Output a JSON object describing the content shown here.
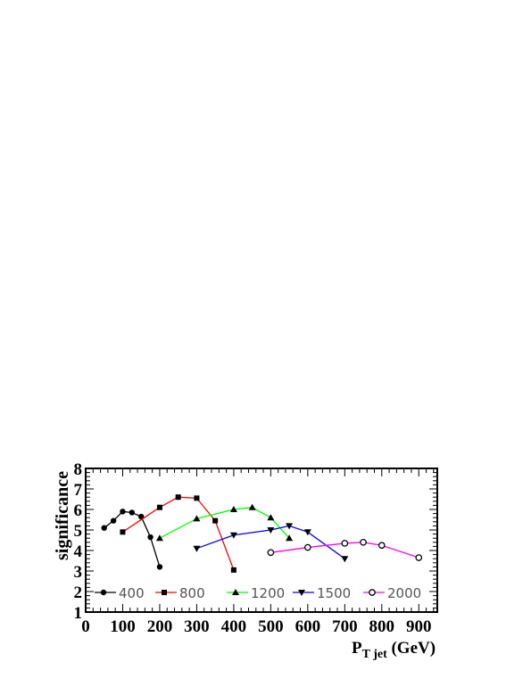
{
  "chart_data": {
    "type": "line",
    "xlabel_main": "P",
    "xlabel_sub": "T jet",
    "xlabel_unit": " (GeV)",
    "ylabel": "significance",
    "xlim": [
      0,
      950
    ],
    "ylim": [
      1,
      8
    ],
    "xticks": [
      0,
      100,
      200,
      300,
      400,
      500,
      600,
      700,
      800,
      900
    ],
    "yticks": [
      1,
      2,
      3,
      4,
      5,
      6,
      7,
      8
    ],
    "legend_placement": "bottom",
    "series": [
      {
        "name": "400",
        "color": "#000000",
        "marker": "circle",
        "x": [
          50,
          75,
          100,
          125,
          150,
          175,
          200
        ],
        "y": [
          5.1,
          5.45,
          5.9,
          5.85,
          5.65,
          4.65,
          3.2
        ]
      },
      {
        "name": "800",
        "color": "#ff0000",
        "marker": "square",
        "x": [
          100,
          200,
          250,
          300,
          350,
          400
        ],
        "y": [
          4.9,
          6.1,
          6.6,
          6.55,
          5.45,
          3.05
        ]
      },
      {
        "name": "1200",
        "color": "#00ff00",
        "marker": "triangle-up",
        "x": [
          200,
          300,
          400,
          450,
          500,
          550
        ],
        "y": [
          4.6,
          5.55,
          6.0,
          6.1,
          5.6,
          4.6
        ]
      },
      {
        "name": "1500",
        "color": "#0000ff",
        "marker": "triangle-down",
        "x": [
          300,
          400,
          500,
          550,
          600,
          700
        ],
        "y": [
          4.1,
          4.75,
          5.0,
          5.2,
          4.9,
          3.6
        ]
      },
      {
        "name": "2000",
        "color": "#ff00ff",
        "marker": "open-circle",
        "x": [
          500,
          600,
          700,
          750,
          800,
          900
        ],
        "y": [
          3.9,
          4.15,
          4.35,
          4.4,
          4.25,
          3.65
        ]
      }
    ]
  }
}
